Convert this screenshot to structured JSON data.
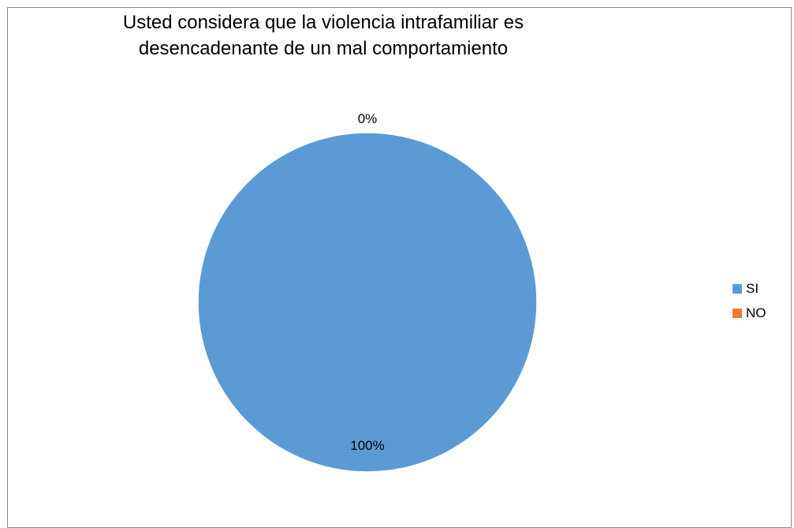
{
  "chart_data": {
    "type": "pie",
    "title_lines": [
      "Usted  considera que  la violencia intrafamiliar es",
      "desencadenante de un mal comportamiento"
    ],
    "slices": [
      {
        "label": "SI",
        "value": 100,
        "data_label": "100%",
        "color": "#5B9BD5"
      },
      {
        "label": "NO",
        "value": 0,
        "data_label": "0%",
        "color": "#ED7D31"
      }
    ],
    "legend_placement": "right"
  }
}
